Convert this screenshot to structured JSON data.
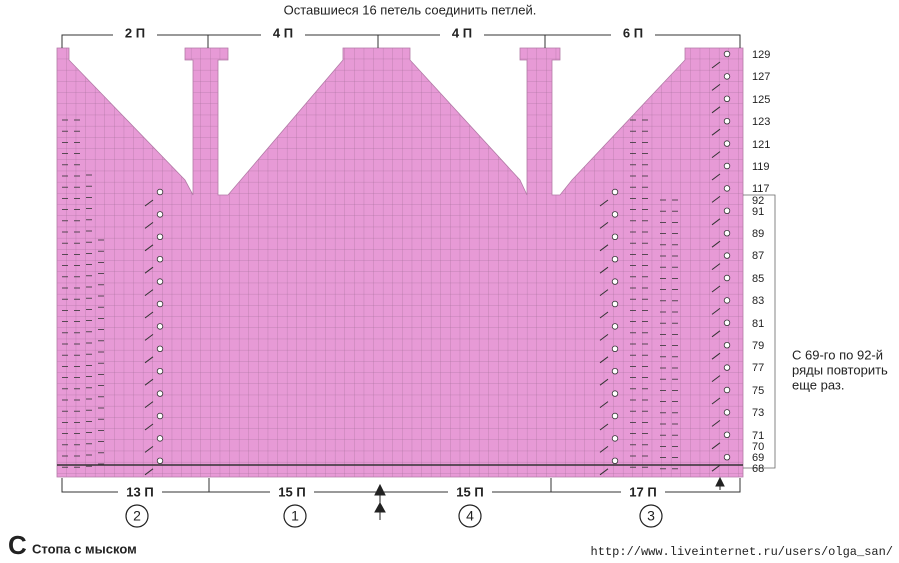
{
  "top_note": "Оставшиеся 16 петель соединить петлей.",
  "top_labels": [
    "2 П",
    "4 П",
    "4 П",
    "6 П"
  ],
  "row_numbers": [
    129,
    127,
    125,
    123,
    121,
    119,
    117,
    92,
    91,
    89,
    87,
    85,
    83,
    81,
    79,
    77,
    75,
    73,
    71,
    70,
    69,
    68
  ],
  "side_note": [
    "С 69-го по 92-й",
    "ряды повторить",
    "еще раз."
  ],
  "bottom_labels": [
    "13 П",
    "15 П",
    "15 П",
    "17 П"
  ],
  "circled": [
    2,
    1,
    4,
    3
  ],
  "section_letter": "С",
  "section_title": "Стопа с мыском",
  "url": "http://www.liveinternet.ru/users/olga_san/"
}
